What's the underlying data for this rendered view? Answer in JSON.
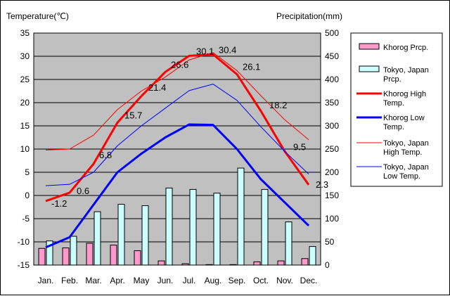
{
  "chart_data": {
    "type": "bar+line",
    "ylabel_left": "Temperature(℃)",
    "ylabel_right": "Precipitation(mm)",
    "ylim_left": [
      -15,
      35
    ],
    "ylim_right": [
      0,
      500
    ],
    "yticks_left": [
      35,
      30,
      25,
      20,
      15,
      10,
      5,
      0,
      -5,
      -10,
      -15
    ],
    "yticks_right": [
      500,
      450,
      400,
      350,
      300,
      250,
      200,
      150,
      100,
      50,
      0
    ],
    "categories": [
      "Jan.",
      "Feb.",
      "Mar.",
      "Apr.",
      "May",
      "Jun.",
      "Jul.",
      "Aug.",
      "Sep.",
      "Oct.",
      "Nov.",
      "Dec."
    ],
    "grid": "horizontal",
    "bars": [
      {
        "name": "Khorog Prcp.",
        "color": "#ff99cc",
        "values": [
          36,
          37,
          47,
          43,
          31,
          9,
          3,
          1,
          1,
          7,
          9,
          14
        ]
      },
      {
        "name": "Tokyo, Japan Prcp.",
        "color": "#ccffff",
        "values": [
          52,
          62,
          115,
          131,
          128,
          166,
          163,
          155,
          209,
          163,
          93,
          40
        ]
      }
    ],
    "lines": [
      {
        "name": "Khorog High Temp.",
        "color": "#ff0000",
        "width": 3,
        "values": [
          -1.2,
          0.6,
          6.8,
          15.7,
          21.4,
          26.6,
          30.1,
          30.4,
          26.1,
          18.2,
          9.5,
          2.3
        ],
        "labels": [
          "-1.2",
          "0.6",
          "6.8",
          "15.7",
          "21.4",
          "26.6",
          "30.1",
          "30.4",
          "26.1",
          "18.2",
          "9.5",
          "2.3"
        ]
      },
      {
        "name": "Khorog Low Temp.",
        "color": "#0000ff",
        "width": 3,
        "values": [
          -11.2,
          -9.0,
          -2.0,
          5.0,
          9.0,
          12.5,
          15.3,
          15.2,
          10.0,
          3.5,
          -1.5,
          -6.5
        ]
      },
      {
        "name": "Tokyo, Japan High Temp.",
        "color": "#ff0000",
        "width": 1,
        "values": [
          9.8,
          10.0,
          13.0,
          18.5,
          22.5,
          25.5,
          29.2,
          30.8,
          26.9,
          21.5,
          16.3,
          12.0
        ]
      },
      {
        "name": "Tokyo, Japan Low Temp.",
        "color": "#0000ff",
        "width": 1,
        "values": [
          2.1,
          2.4,
          5.0,
          10.7,
          15.0,
          18.8,
          22.6,
          24.0,
          20.5,
          14.8,
          9.5,
          4.6
        ]
      }
    ],
    "legend_placement": "right",
    "legend": [
      {
        "kind": "bar",
        "color": "#ff99cc",
        "lines": [
          "Khorog Prcp."
        ]
      },
      {
        "kind": "bar",
        "color": "#ccffff",
        "lines": [
          "Tokyo, Japan",
          "Prcp."
        ]
      },
      {
        "kind": "line",
        "color": "#ff0000",
        "width": 3,
        "lines": [
          "Khorog High",
          "Temp."
        ]
      },
      {
        "kind": "line",
        "color": "#0000ff",
        "width": 3,
        "lines": [
          "Khorog Low",
          "Temp."
        ]
      },
      {
        "kind": "line",
        "color": "#ff0000",
        "width": 1,
        "lines": [
          "Tokyo, Japan",
          "High Temp."
        ]
      },
      {
        "kind": "line",
        "color": "#0000ff",
        "width": 1,
        "lines": [
          "Tokyo, Japan",
          "Low Temp."
        ]
      }
    ],
    "plot_background": "#c0c0c0"
  }
}
